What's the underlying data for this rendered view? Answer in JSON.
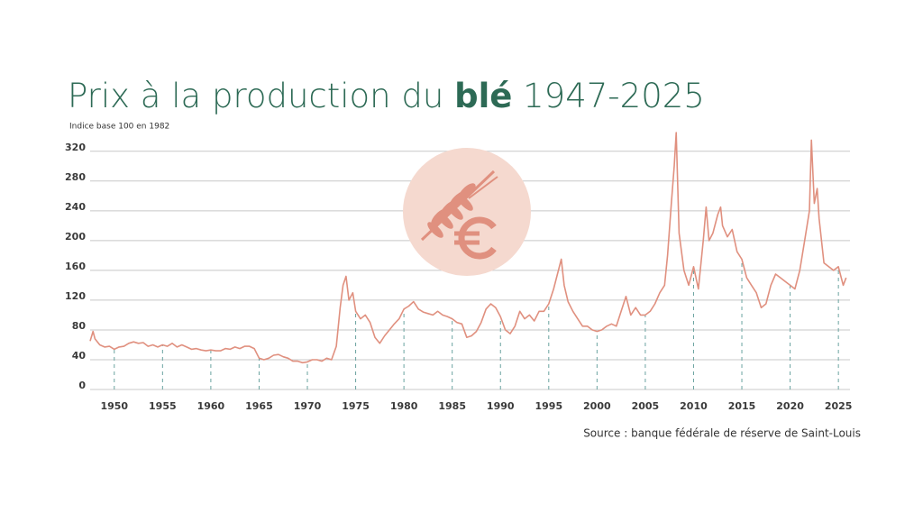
{
  "chart_data": {
    "type": "line",
    "title": {
      "prefix": "Prix à la production du",
      "highlight": "blé",
      "suffix": "1947-2025"
    },
    "subtitle": "Indice base 100 en 1982",
    "source": "Source : banque fédérale de réserve de Saint-Louis",
    "color": "#e0907f",
    "grid": true,
    "xlim": [
      1947.5,
      2026.2
    ],
    "ylim": [
      0,
      350
    ],
    "yticks": [
      0,
      40,
      80,
      120,
      160,
      200,
      240,
      280,
      320
    ],
    "xticks": [
      1950,
      1955,
      1960,
      1965,
      1970,
      1975,
      1980,
      1985,
      1990,
      1995,
      2000,
      2005,
      2010,
      2015,
      2020,
      2025
    ],
    "x": [
      1947.5,
      1947.8,
      1948,
      1948.5,
      1949,
      1949.5,
      1950,
      1950.5,
      1951,
      1951.5,
      1952,
      1952.5,
      1953,
      1953.5,
      1954,
      1954.5,
      1955,
      1955.5,
      1956,
      1956.5,
      1957,
      1957.5,
      1958,
      1958.5,
      1959,
      1959.5,
      1960,
      1960.5,
      1961,
      1961.5,
      1962,
      1962.5,
      1963,
      1963.5,
      1964,
      1964.5,
      1965,
      1965.5,
      1966,
      1966.5,
      1967,
      1967.5,
      1968,
      1968.5,
      1969,
      1969.5,
      1970,
      1970.5,
      1971,
      1971.5,
      1972,
      1972.5,
      1973,
      1973.4,
      1973.7,
      1974,
      1974.3,
      1974.7,
      1975,
      1975.5,
      1976,
      1976.5,
      1977,
      1977.5,
      1978,
      1978.5,
      1979,
      1979.5,
      1980,
      1980.5,
      1981,
      1981.5,
      1982,
      1982.5,
      1983,
      1983.5,
      1984,
      1984.5,
      1985,
      1985.5,
      1986,
      1986.5,
      1987,
      1987.5,
      1988,
      1988.5,
      1989,
      1989.5,
      1990,
      1990.5,
      1991,
      1991.5,
      1992,
      1992.5,
      1993,
      1993.5,
      1994,
      1994.5,
      1995,
      1995.5,
      1996,
      1996.3,
      1996.6,
      1997,
      1997.5,
      1998,
      1998.5,
      1999,
      1999.5,
      2000,
      2000.5,
      2001,
      2001.5,
      2002,
      2002.5,
      2003,
      2003.5,
      2004,
      2004.5,
      2005,
      2005.5,
      2006,
      2006.5,
      2007,
      2007.3,
      2007.7,
      2008,
      2008.2,
      2008.5,
      2009,
      2009.5,
      2010,
      2010.5,
      2011,
      2011.3,
      2011.6,
      2012,
      2012.5,
      2012.8,
      2013,
      2013.5,
      2014,
      2014.5,
      2015,
      2015.5,
      2016,
      2016.5,
      2017,
      2017.5,
      2018,
      2018.5,
      2019,
      2019.5,
      2020,
      2020.5,
      2021,
      2021.5,
      2022,
      2022.2,
      2022.5,
      2022.8,
      2023,
      2023.5,
      2024,
      2024.5,
      2025,
      2025.5,
      2025.8
    ],
    "values": [
      65,
      78,
      68,
      60,
      57,
      58,
      54,
      57,
      58,
      62,
      64,
      62,
      63,
      58,
      60,
      57,
      60,
      58,
      62,
      57,
      60,
      57,
      54,
      55,
      53,
      52,
      53,
      52,
      52,
      55,
      54,
      57,
      55,
      58,
      58,
      55,
      42,
      40,
      42,
      46,
      47,
      44,
      42,
      38,
      38,
      36,
      37,
      40,
      40,
      38,
      42,
      40,
      58,
      110,
      140,
      152,
      120,
      130,
      105,
      95,
      100,
      90,
      70,
      62,
      72,
      80,
      88,
      95,
      108,
      112,
      118,
      108,
      104,
      102,
      100,
      105,
      100,
      98,
      95,
      90,
      88,
      70,
      72,
      78,
      90,
      108,
      115,
      110,
      98,
      80,
      75,
      85,
      105,
      95,
      100,
      92,
      105,
      105,
      115,
      135,
      160,
      175,
      140,
      118,
      105,
      95,
      85,
      85,
      80,
      78,
      80,
      85,
      88,
      85,
      105,
      125,
      100,
      110,
      100,
      100,
      105,
      115,
      130,
      140,
      180,
      250,
      300,
      345,
      210,
      160,
      140,
      165,
      135,
      200,
      245,
      200,
      210,
      235,
      245,
      220,
      205,
      215,
      185,
      175,
      150,
      140,
      130,
      110,
      115,
      140,
      155,
      150,
      145,
      140,
      135,
      160,
      200,
      240,
      335,
      250,
      270,
      230,
      170,
      165,
      160,
      165,
      140,
      150
    ]
  }
}
